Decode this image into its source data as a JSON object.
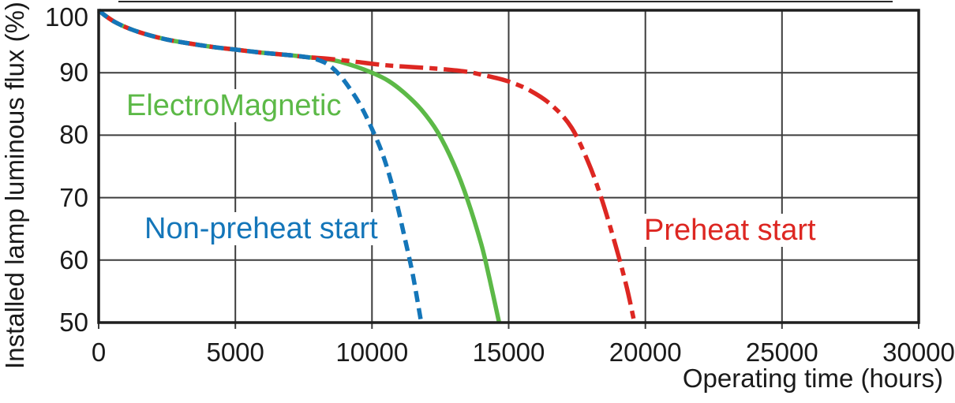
{
  "figure": {
    "background": "#ffffff",
    "text_color": "#1a1a1a",
    "grid_color": "#3d3d3d",
    "border_color": "#1f1f1f"
  },
  "chart_data": {
    "type": "line",
    "title": "",
    "xlabel": "Operating time (hours)",
    "ylabel": "Installed lamp luminous flux (%)",
    "xlim": [
      0,
      30000
    ],
    "ylim": [
      50,
      100
    ],
    "x_ticks": [
      0,
      5000,
      10000,
      15000,
      20000,
      25000,
      30000
    ],
    "y_ticks": [
      100,
      90,
      80,
      70,
      60,
      50
    ],
    "grid": true,
    "legend_position": "inline-annotations",
    "series": [
      {
        "name": "ElectroMagnetic",
        "color": "#5CB947",
        "style": "solid",
        "points": [
          [
            0,
            100
          ],
          [
            250,
            99.1
          ],
          [
            600,
            98.1
          ],
          [
            1100,
            97.1
          ],
          [
            1700,
            96.2
          ],
          [
            2500,
            95.3
          ],
          [
            3300,
            94.7
          ],
          [
            4200,
            94.1
          ],
          [
            5000,
            93.7
          ],
          [
            6000,
            93.2
          ],
          [
            7000,
            92.8
          ],
          [
            7600,
            92.5
          ],
          [
            8100,
            92.3
          ],
          [
            8700,
            91.9
          ],
          [
            9400,
            91
          ],
          [
            10000,
            90
          ],
          [
            10600,
            88.7
          ],
          [
            11200,
            86.7
          ],
          [
            11800,
            84.1
          ],
          [
            12400,
            80.5
          ],
          [
            13000,
            75.3
          ],
          [
            13500,
            69.6
          ],
          [
            14000,
            62.5
          ],
          [
            14300,
            57
          ],
          [
            14650,
            50
          ]
        ]
      },
      {
        "name": "Preheat start",
        "color": "#DD2722",
        "style": "dash-dot",
        "points": [
          [
            0,
            100
          ],
          [
            250,
            99.1
          ],
          [
            600,
            98.1
          ],
          [
            1100,
            97.1
          ],
          [
            1700,
            96.2
          ],
          [
            2500,
            95.3
          ],
          [
            3300,
            94.7
          ],
          [
            4200,
            94.1
          ],
          [
            5000,
            93.7
          ],
          [
            6000,
            93.2
          ],
          [
            7000,
            92.8
          ],
          [
            7600,
            92.5
          ],
          [
            8500,
            92.2
          ],
          [
            9500,
            91.7
          ],
          [
            10500,
            91.2
          ],
          [
            11500,
            90.9
          ],
          [
            12500,
            90.6
          ],
          [
            13400,
            90.2
          ],
          [
            14200,
            89.5
          ],
          [
            15000,
            88.6
          ],
          [
            15800,
            87.1
          ],
          [
            16600,
            84.7
          ],
          [
            17300,
            81.2
          ],
          [
            17900,
            75.8
          ],
          [
            18400,
            69.8
          ],
          [
            18900,
            62.5
          ],
          [
            19300,
            56
          ],
          [
            19600,
            50
          ]
        ]
      },
      {
        "name": "Non-preheat start",
        "color": "#1476B9",
        "style": "dashed",
        "points": [
          [
            0,
            100
          ],
          [
            250,
            99.1
          ],
          [
            600,
            98.1
          ],
          [
            1100,
            97.1
          ],
          [
            1700,
            96.2
          ],
          [
            2500,
            95.3
          ],
          [
            3300,
            94.7
          ],
          [
            4200,
            94.1
          ],
          [
            5000,
            93.7
          ],
          [
            6000,
            93.2
          ],
          [
            7000,
            92.8
          ],
          [
            7600,
            92.5
          ],
          [
            8000,
            92.1
          ],
          [
            8400,
            91.3
          ],
          [
            8800,
            89.7
          ],
          [
            9200,
            87.4
          ],
          [
            9600,
            84.6
          ],
          [
            10000,
            81
          ],
          [
            10400,
            76.8
          ],
          [
            10800,
            71
          ],
          [
            11200,
            63.5
          ],
          [
            11500,
            57.5
          ],
          [
            11800,
            50
          ]
        ]
      }
    ],
    "annotations": [
      {
        "text": "ElectroMagnetic",
        "color": "#5CB947",
        "left": 157,
        "top": 113
      },
      {
        "text": "Non-preheat start",
        "color": "#1476B9",
        "left": 180,
        "top": 269
      },
      {
        "text": "Preheat start",
        "color": "#DD2722",
        "left": 813,
        "top": 271
      }
    ]
  }
}
